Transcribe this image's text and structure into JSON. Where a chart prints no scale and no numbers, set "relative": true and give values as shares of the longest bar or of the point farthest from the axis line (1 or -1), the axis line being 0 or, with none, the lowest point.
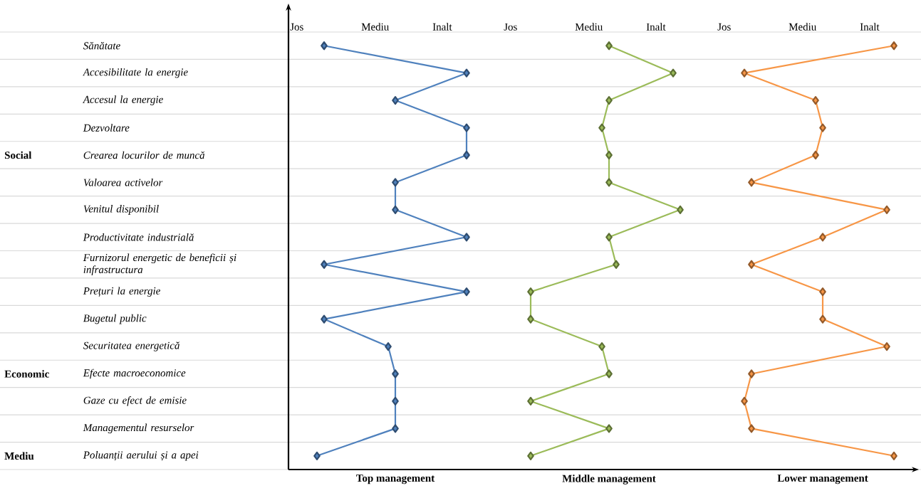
{
  "chart_data": [
    {
      "type": "line",
      "orientation": "horizontal",
      "relative": true,
      "tick_labels": "y",
      "xlabel": "Top management",
      "categories": [
        "Sănătate",
        "Accesibilitate la energie",
        "Accesul la energie",
        "Dezvoltare",
        "Crearea locurilor de muncă",
        "Valoarea activelor",
        "Venitul disponibil",
        "Productivitate industrială",
        "Furnizorul energetic de beneficii și infrastructura",
        "Prețuri la energie",
        "Bugetul public",
        "Securitatea energetică",
        "Efecte macroeconomice",
        "Gaze cu efect de emisie",
        "Managementul resurselor",
        "Poluanții aerului și a apei"
      ],
      "series": [
        {
          "color": "#4f81bd",
          "values": [
            0.2,
            1,
            0.6,
            1,
            1,
            0.6,
            0.6,
            1,
            0.2,
            1,
            0.2,
            0.56,
            0.6,
            0.6,
            0.6,
            0.16
          ]
        }
      ],
      "grid": true,
      "marker": "diamond",
      "annotations": [
        "Jos",
        "Mediu",
        "Inalt",
        "Social",
        "Economic",
        "Mediu"
      ]
    },
    {
      "type": "line",
      "orientation": "horizontal",
      "relative": true,
      "tick_labels": false,
      "xlabel": "Middle management",
      "categories": [
        null,
        null,
        null,
        null,
        null,
        null,
        null,
        null,
        null,
        null,
        null,
        null,
        null,
        null,
        null,
        null
      ],
      "series": [
        {
          "color": "#9bbb59",
          "values": [
            0.6,
            0.96,
            0.6,
            0.56,
            0.6,
            0.6,
            1,
            0.6,
            0.64,
            0.16,
            0.16,
            0.56,
            0.6,
            0.16,
            0.6,
            0.16
          ]
        }
      ],
      "grid": true,
      "marker": "diamond",
      "annotations": [
        "Jos",
        "Mediu",
        "Inalt"
      ]
    },
    {
      "type": "line",
      "orientation": "horizontal",
      "relative": true,
      "tick_labels": false,
      "xlabel": "Lower management",
      "categories": [
        null,
        null,
        null,
        null,
        null,
        null,
        null,
        null,
        null,
        null,
        null,
        null,
        null,
        null,
        null,
        null
      ],
      "series": [
        {
          "color": "#f79646",
          "values": [
            1,
            0.16,
            0.56,
            0.6,
            0.56,
            0.2,
            0.96,
            0.6,
            0.2,
            0.6,
            0.6,
            0.96,
            0.2,
            0.16,
            0.2,
            1
          ]
        }
      ],
      "grid": true,
      "marker": "diamond",
      "annotations": [
        "Jos",
        "Mediu",
        "Inalt"
      ]
    }
  ]
}
